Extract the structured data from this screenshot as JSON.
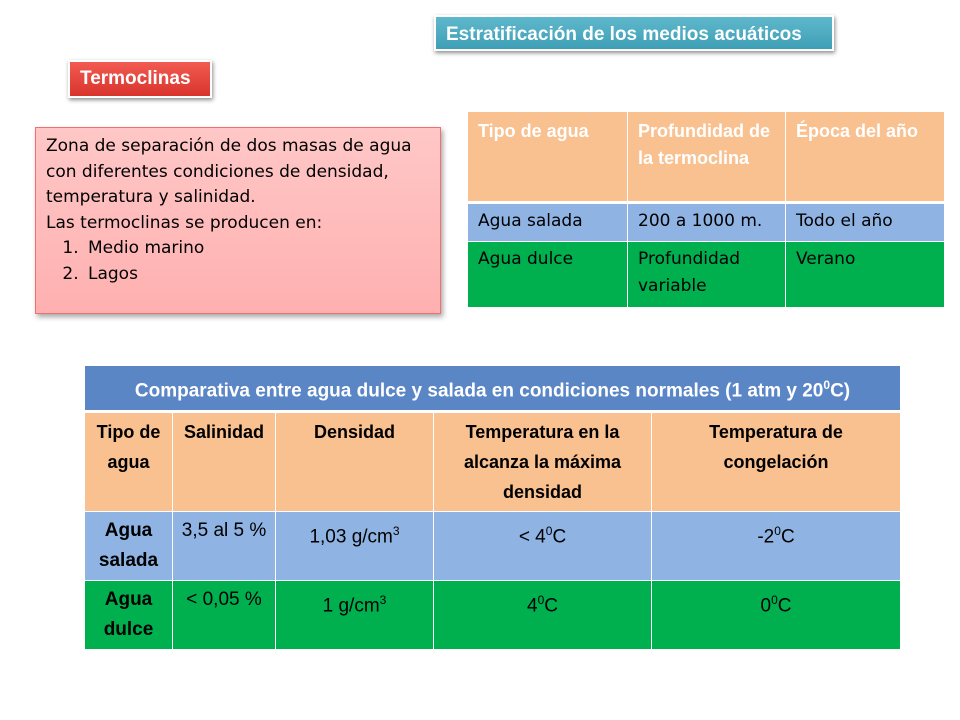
{
  "title": "Estratificación de los medios acuáticos",
  "subtitle": "Termoclinas",
  "description": {
    "text": "Zona de separación de dos masas de agua con diferentes condiciones de densidad, temperatura y salinidad.",
    "intro": "Las termoclinas se producen en:",
    "items": [
      "Medio marino",
      "Lagos"
    ]
  },
  "table1": {
    "headers": [
      "Tipo de agua",
      "Profundidad de la termoclina",
      "Época del año"
    ],
    "rows": [
      [
        "Agua salada",
        "200 a 1000 m.",
        "Todo el año"
      ],
      [
        "Agua dulce",
        "Profundidad variable",
        "Verano"
      ]
    ]
  },
  "table2": {
    "title_main": "Comparativa entre agua dulce y salada en condiciones normales (1 atm y 20",
    "title_sup": "0",
    "title_end": "C)",
    "headers": [
      "Tipo de agua",
      "Salinidad",
      "Densidad",
      "Temperatura en la alcanza la máxima densidad",
      "Temperatura de congelación"
    ],
    "rows": [
      {
        "name": "Agua salada",
        "salinidad": "3,5 al 5 %",
        "densidad": "1,03 g/cm",
        "densidad_sup": "3",
        "tmax": "< 4",
        "tmax_sup": "0",
        "tmax_end": "C",
        "tcong": "-2",
        "tcong_sup": "0",
        "tcong_end": "C"
      },
      {
        "name": "Agua dulce",
        "salinidad": "< 0,05 %",
        "densidad": "1 g/cm",
        "densidad_sup": "3",
        "tmax": "4",
        "tmax_sup": "0",
        "tmax_end": "C",
        "tcong": "0",
        "tcong_sup": "0",
        "tcong_end": "C"
      }
    ]
  },
  "colors": {
    "title_bg": "#4aa9bf",
    "subtitle_bg": "#e8443c",
    "desc_bg": "#ffbcbc",
    "header_orange": "#f9c090",
    "row_blue": "#8fb3e2",
    "row_green": "#00b04f",
    "table2_head": "#5b86c6",
    "name_brown": "#8a6a2c"
  }
}
